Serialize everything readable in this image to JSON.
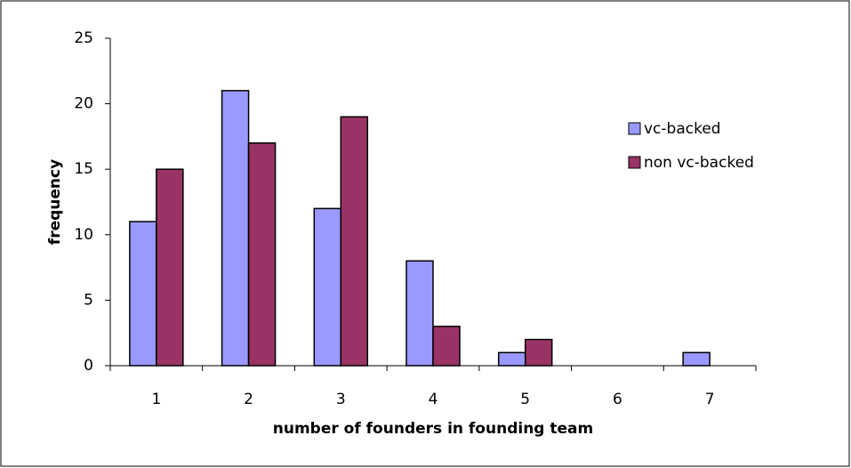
{
  "chart_data": {
    "type": "bar",
    "x_label": "number of founders in founding team",
    "y_label": "frequency",
    "categories": [
      "1",
      "2",
      "3",
      "4",
      "5",
      "6",
      "7"
    ],
    "series": [
      {
        "name": "vc-backed",
        "color": "#9999ff",
        "values": [
          11,
          21,
          12,
          8,
          1,
          0,
          1
        ]
      },
      {
        "name": "non vc-backed",
        "color": "#993366",
        "values": [
          15,
          17,
          19,
          3,
          2,
          0,
          0
        ]
      }
    ],
    "ylim": [
      0,
      25
    ],
    "yticks": [
      0,
      5,
      10,
      15,
      20,
      25
    ]
  }
}
